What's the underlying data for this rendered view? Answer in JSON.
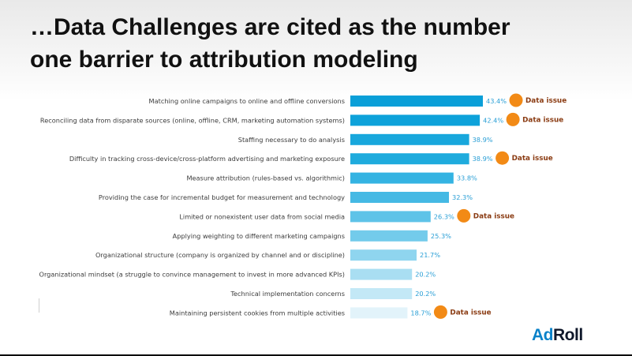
{
  "slide": {
    "title_line1": "…Data Challenges are cited as the number",
    "title_line2": "one barrier to attribution modeling"
  },
  "logo": {
    "part1": "Ad",
    "part2": "Roll",
    "accent_color": "#0a82c9",
    "dark_color": "#10182b"
  },
  "chart_data": {
    "type": "bar",
    "orientation": "horizontal",
    "categories": [
      "Matching online campaigns to online and offline conversions",
      "Reconciling data from disparate sources  (online, offline, CRM, marketing automation systems)",
      "Staffing necessary to do analysis",
      "Difficulty in tracking cross-device/cross-platform advertising and marketing exposure",
      "Measure attribution (rules-based vs. algorithmic)",
      "Providing the case for incremental budget for measurement and technology",
      "Limited or nonexistent user data from social media",
      "Applying weighting to different marketing campaigns",
      "Organizational structure (company is organized by channel and or discipline)",
      "Organizational mindset (a struggle to convince management to invest in more advanced KPIs)",
      "Technical implementation concerns",
      "Maintaining persistent cookies from multiple activities"
    ],
    "values": [
      43.4,
      42.4,
      38.9,
      38.9,
      33.8,
      32.3,
      26.3,
      25.3,
      21.7,
      20.2,
      20.2,
      18.7
    ],
    "value_labels": [
      "43.4%",
      "42.4%",
      "38.9%",
      "38.9%",
      "33.8%",
      "32.3%",
      "26.3%",
      "25.3%",
      "21.7%",
      "20.2%",
      "20.2%",
      "18.7%"
    ],
    "bar_colors": [
      "#0a9fd8",
      "#0da2da",
      "#18a7dc",
      "#1fabdd",
      "#34b3e2",
      "#45b9e4",
      "#5ec3e8",
      "#73cbeb",
      "#8fd5ef",
      "#a9def2",
      "#c3e8f6",
      "#e2f3fa"
    ],
    "label_color": "#2a9fd6",
    "annotations": [
      {
        "index": 0,
        "text": "Data issue"
      },
      {
        "index": 1,
        "text": "Data issue"
      },
      {
        "index": 3,
        "text": "Data issue"
      },
      {
        "index": 6,
        "text": "Data issue"
      },
      {
        "index": 11,
        "text": "Data issue"
      }
    ],
    "annotation_color": "#f28a16",
    "annotation_text_color": "#8a3b12",
    "xlim": [
      0,
      43.4
    ],
    "grid": false,
    "legend": "none"
  }
}
